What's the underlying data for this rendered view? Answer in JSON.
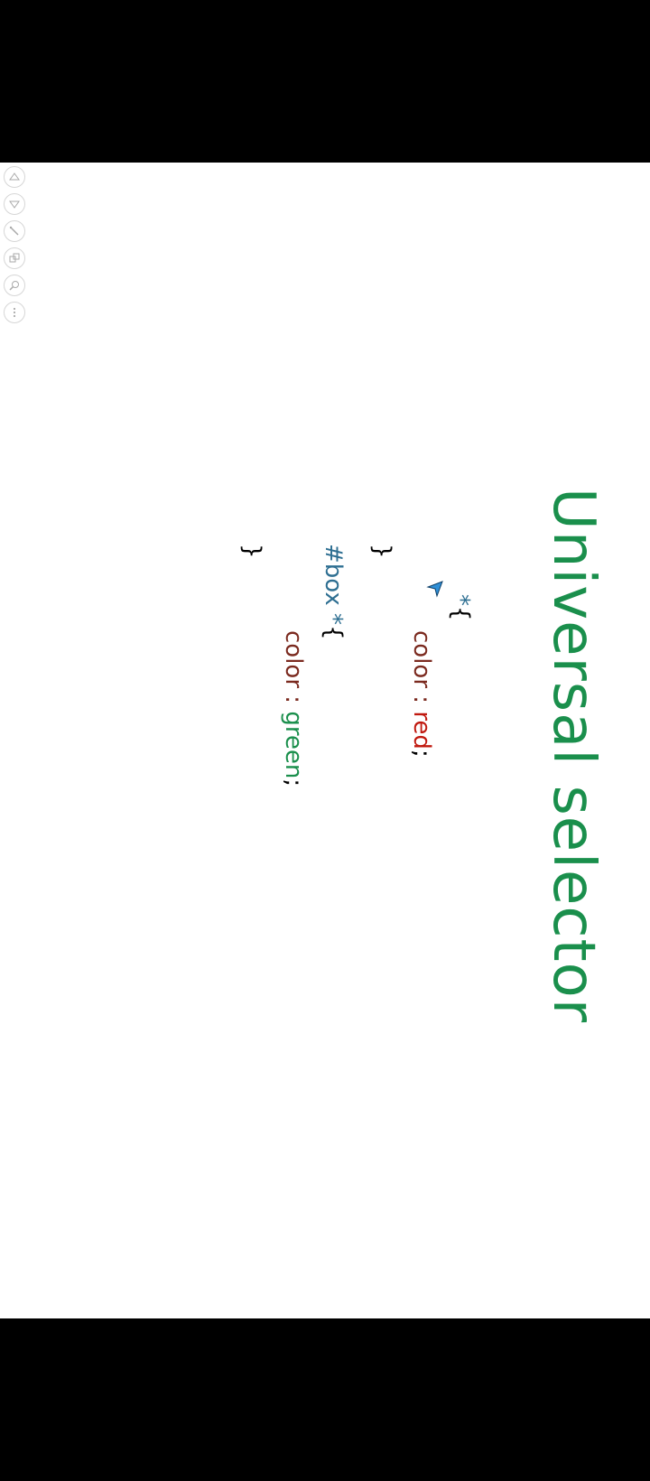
{
  "slide": {
    "title": "Universal selector",
    "code": {
      "line1_selector": "*",
      "line1_brace": "{",
      "line2_prop": "color : ",
      "line2_value": "red",
      "line2_semicolon": ";",
      "line3_brace": "}",
      "line4_selector": "#box *",
      "line4_brace": "{",
      "line5_prop": "color : ",
      "line5_value": "green",
      "line5_semicolon": ";",
      "line6_brace": "}"
    }
  },
  "toolbar": {
    "buttons": [
      {
        "icon": "up-arrow-icon"
      },
      {
        "icon": "down-arrow-icon"
      },
      {
        "icon": "pen-icon"
      },
      {
        "icon": "slides-grid-icon"
      },
      {
        "icon": "zoom-icon"
      },
      {
        "icon": "more-icon"
      }
    ]
  },
  "colors": {
    "title": "#1a8f4c",
    "selector": "#2e6f92",
    "property": "#7b2a1f",
    "value_red": "#c0190f",
    "value_green": "#1a8f4c",
    "pointer": "#2f8fd6"
  }
}
